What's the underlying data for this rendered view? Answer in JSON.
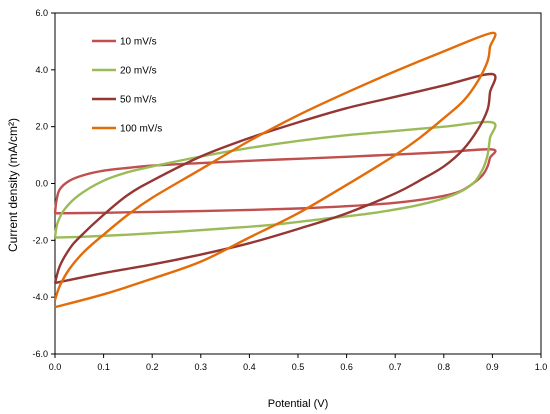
{
  "chart_data": {
    "type": "line",
    "title": "",
    "xlabel": "Potential (V)",
    "ylabel": "Current density (mA/cm²)",
    "xlim": [
      0.0,
      1.0
    ],
    "ylim": [
      -6.0,
      6.0
    ],
    "x_ticks": [
      "0.0",
      "0.1",
      "0.2",
      "0.3",
      "0.4",
      "0.5",
      "0.6",
      "0.7",
      "0.8",
      "0.9",
      "1.0"
    ],
    "y_ticks": [
      "6.0",
      "4.0",
      "2.0",
      "0.0",
      "-2.0",
      "-4.0",
      "-6.0"
    ],
    "grid": false,
    "legend_position": "top-left",
    "series": [
      {
        "name": "10 mV/s",
        "color": "#c0504d",
        "points": [
          [
            0.0,
            -1.05
          ],
          [
            0.003,
            -0.6
          ],
          [
            0.01,
            -0.2
          ],
          [
            0.03,
            0.1
          ],
          [
            0.06,
            0.3
          ],
          [
            0.1,
            0.45
          ],
          [
            0.15,
            0.55
          ],
          [
            0.2,
            0.63
          ],
          [
            0.3,
            0.72
          ],
          [
            0.4,
            0.8
          ],
          [
            0.5,
            0.87
          ],
          [
            0.6,
            0.94
          ],
          [
            0.7,
            1.02
          ],
          [
            0.8,
            1.1
          ],
          [
            0.9,
            1.2
          ],
          [
            0.895,
            0.9
          ],
          [
            0.89,
            0.6
          ],
          [
            0.88,
            0.3
          ],
          [
            0.86,
            0.0
          ],
          [
            0.83,
            -0.3
          ],
          [
            0.78,
            -0.5
          ],
          [
            0.7,
            -0.68
          ],
          [
            0.6,
            -0.8
          ],
          [
            0.5,
            -0.88
          ],
          [
            0.4,
            -0.93
          ],
          [
            0.3,
            -0.97
          ],
          [
            0.2,
            -1.0
          ],
          [
            0.1,
            -1.03
          ],
          [
            0.0,
            -1.05
          ]
        ]
      },
      {
        "name": "20 mV/s",
        "color": "#9bbb59",
        "points": [
          [
            0.0,
            -1.9
          ],
          [
            0.005,
            -1.4
          ],
          [
            0.02,
            -0.9
          ],
          [
            0.05,
            -0.4
          ],
          [
            0.1,
            0.1
          ],
          [
            0.15,
            0.4
          ],
          [
            0.2,
            0.6
          ],
          [
            0.3,
            0.95
          ],
          [
            0.4,
            1.25
          ],
          [
            0.5,
            1.5
          ],
          [
            0.6,
            1.7
          ],
          [
            0.7,
            1.85
          ],
          [
            0.8,
            2.0
          ],
          [
            0.9,
            2.15
          ],
          [
            0.895,
            1.6
          ],
          [
            0.89,
            1.0
          ],
          [
            0.88,
            0.5
          ],
          [
            0.86,
            0.0
          ],
          [
            0.82,
            -0.4
          ],
          [
            0.75,
            -0.75
          ],
          [
            0.65,
            -1.05
          ],
          [
            0.55,
            -1.25
          ],
          [
            0.45,
            -1.45
          ],
          [
            0.35,
            -1.58
          ],
          [
            0.25,
            -1.7
          ],
          [
            0.15,
            -1.8
          ],
          [
            0.05,
            -1.88
          ],
          [
            0.0,
            -1.9
          ]
        ]
      },
      {
        "name": "50 mV/s",
        "color": "#943634",
        "points": [
          [
            0.0,
            -3.5
          ],
          [
            0.01,
            -2.9
          ],
          [
            0.03,
            -2.3
          ],
          [
            0.05,
            -1.9
          ],
          [
            0.1,
            -1.1
          ],
          [
            0.15,
            -0.4
          ],
          [
            0.2,
            0.1
          ],
          [
            0.3,
            0.95
          ],
          [
            0.4,
            1.6
          ],
          [
            0.5,
            2.15
          ],
          [
            0.6,
            2.65
          ],
          [
            0.7,
            3.05
          ],
          [
            0.8,
            3.45
          ],
          [
            0.9,
            3.85
          ],
          [
            0.895,
            3.2
          ],
          [
            0.89,
            2.6
          ],
          [
            0.87,
            1.9
          ],
          [
            0.84,
            1.2
          ],
          [
            0.8,
            0.6
          ],
          [
            0.75,
            0.1
          ],
          [
            0.7,
            -0.35
          ],
          [
            0.6,
            -1.05
          ],
          [
            0.5,
            -1.6
          ],
          [
            0.4,
            -2.1
          ],
          [
            0.3,
            -2.5
          ],
          [
            0.2,
            -2.85
          ],
          [
            0.1,
            -3.15
          ],
          [
            0.0,
            -3.5
          ]
        ]
      },
      {
        "name": "100 mV/s",
        "color": "#e36c09",
        "points": [
          [
            0.0,
            -4.1
          ],
          [
            0.01,
            -3.6
          ],
          [
            0.03,
            -3.0
          ],
          [
            0.06,
            -2.4
          ],
          [
            0.1,
            -1.8
          ],
          [
            0.15,
            -1.1
          ],
          [
            0.2,
            -0.5
          ],
          [
            0.3,
            0.5
          ],
          [
            0.4,
            1.5
          ],
          [
            0.5,
            2.4
          ],
          [
            0.6,
            3.2
          ],
          [
            0.7,
            3.95
          ],
          [
            0.8,
            4.65
          ],
          [
            0.9,
            5.3
          ],
          [
            0.895,
            4.8
          ],
          [
            0.89,
            4.3
          ],
          [
            0.87,
            3.6
          ],
          [
            0.84,
            2.9
          ],
          [
            0.8,
            2.3
          ],
          [
            0.75,
            1.6
          ],
          [
            0.7,
            1.0
          ],
          [
            0.6,
            -0.05
          ],
          [
            0.5,
            -1.05
          ],
          [
            0.4,
            -1.9
          ],
          [
            0.3,
            -2.75
          ],
          [
            0.2,
            -3.35
          ],
          [
            0.1,
            -3.9
          ],
          [
            0.0,
            -4.35
          ]
        ]
      }
    ]
  }
}
